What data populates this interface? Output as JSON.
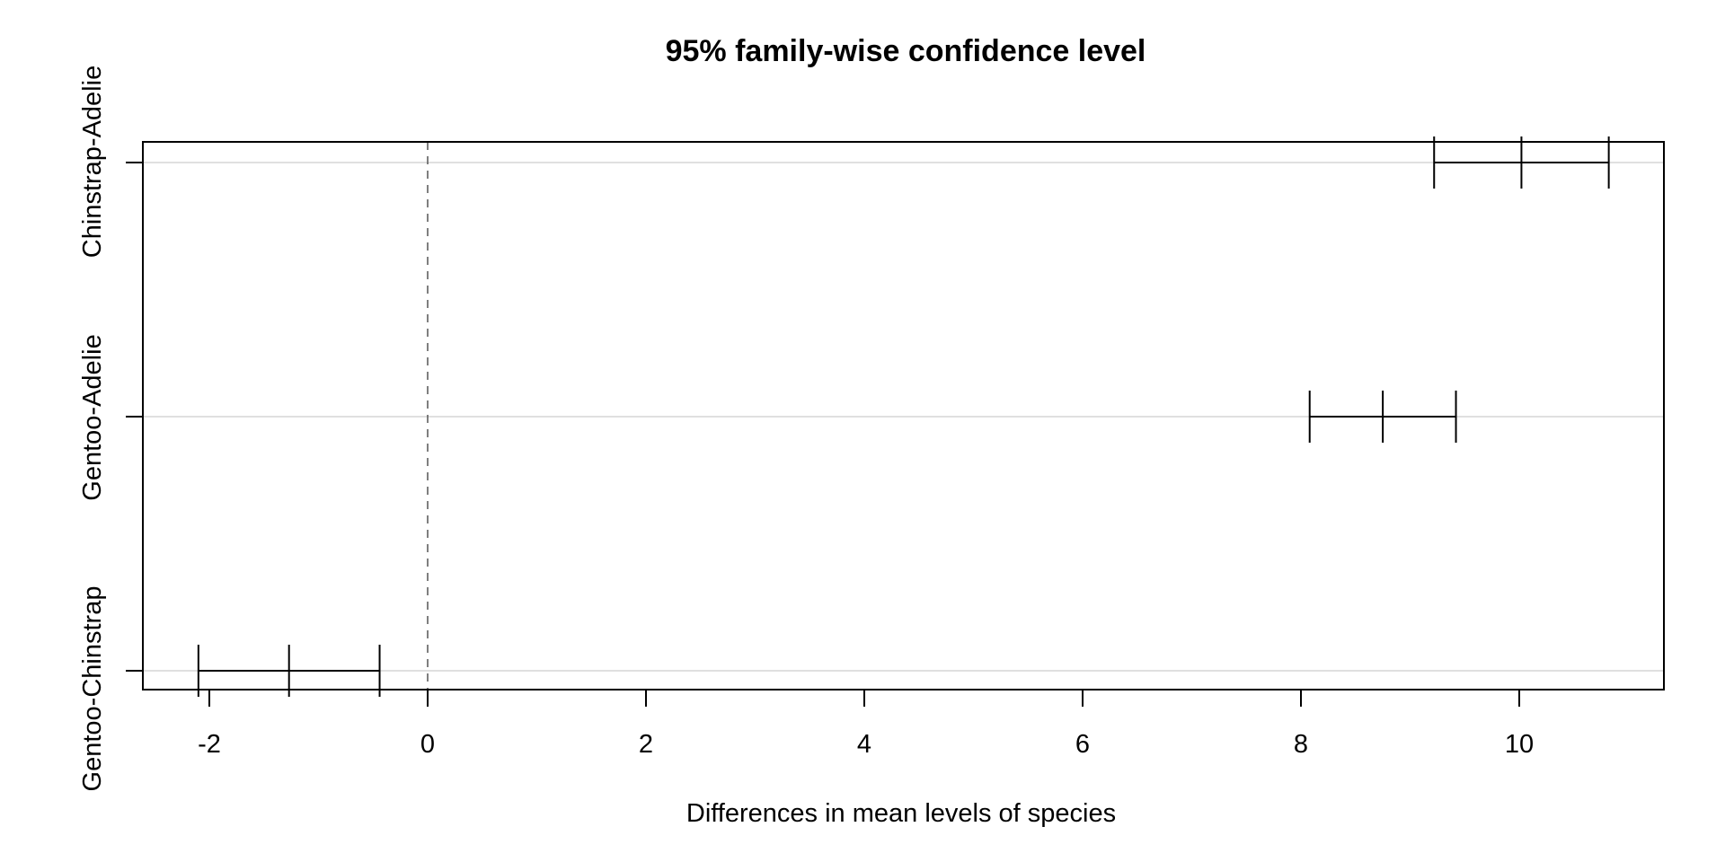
{
  "chart_data": {
    "type": "errorbar",
    "title": "95% family-wise confidence level",
    "xlabel": "Differences in mean levels of species",
    "ylabel": "",
    "xlim": [
      -2.6,
      11.35
    ],
    "x_ticks": [
      -2,
      0,
      2,
      4,
      6,
      8,
      10
    ],
    "x_tick_labels": [
      "-2",
      "0",
      "2",
      "4",
      "6",
      "8",
      "10"
    ],
    "reference_line": 0,
    "grid": "horizontal",
    "categories": [
      "Chinstrap-Adelie",
      "Gentoo-Adelie",
      "Gentoo-Chinstrap"
    ],
    "intervals": [
      {
        "label": "Chinstrap-Adelie",
        "lwr": 9.22,
        "diff": 10.02,
        "upr": 10.82
      },
      {
        "label": "Gentoo-Adelie",
        "lwr": 8.08,
        "diff": 8.75,
        "upr": 9.42
      },
      {
        "label": "Gentoo-Chinstrap",
        "lwr": -2.1,
        "diff": -1.27,
        "upr": -0.44
      }
    ]
  }
}
